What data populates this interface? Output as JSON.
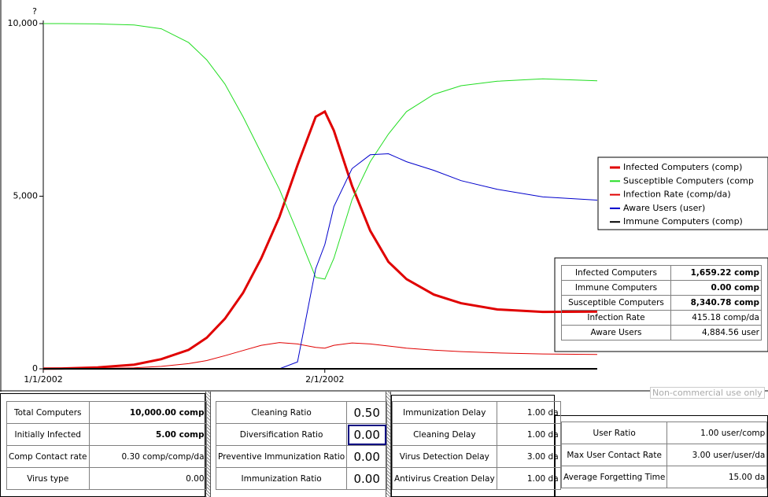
{
  "chart_data": {
    "type": "line",
    "y_unit": "?",
    "x": [
      0,
      2,
      6,
      10,
      13,
      16,
      18,
      20,
      22,
      24,
      26,
      28,
      30,
      31,
      32,
      34,
      36,
      38,
      40,
      43,
      46,
      50,
      55,
      61
    ],
    "xlim": [
      0,
      61
    ],
    "xticks": [
      {
        "value": 0,
        "label": "1/1/2002"
      },
      {
        "value": 31,
        "label": "2/1/2002"
      }
    ],
    "ylim": [
      0,
      10000
    ],
    "yticks": [
      0,
      {
        "value": 5000,
        "label": "5,000"
      },
      {
        "value": 10000,
        "label": "10,000"
      }
    ],
    "legend": "right",
    "series": [
      {
        "name": "Infected Computers (comp)",
        "color": "#e00000",
        "linewidth": 3,
        "values": [
          5,
          10,
          40,
          120,
          280,
          550,
          900,
          1450,
          2200,
          3200,
          4400,
          5900,
          7300,
          7450,
          6900,
          5300,
          4000,
          3100,
          2600,
          2150,
          1900,
          1720,
          1650,
          1659
        ]
      },
      {
        "name": "Susceptible Computers (comp",
        "color": "#22dd22",
        "linewidth": 1,
        "values": [
          10000,
          10000,
          9990,
          9960,
          9850,
          9450,
          8950,
          8250,
          7300,
          6250,
          5200,
          3950,
          2650,
          2600,
          3200,
          4900,
          6000,
          6800,
          7450,
          7950,
          8200,
          8330,
          8400,
          8341
        ]
      },
      {
        "name": "Infection Rate (comp/da)",
        "color": "#e00000",
        "linewidth": 1,
        "values": [
          0,
          2,
          10,
          30,
          70,
          150,
          240,
          380,
          530,
          680,
          760,
          720,
          620,
          600,
          680,
          750,
          720,
          660,
          600,
          540,
          500,
          460,
          430,
          415
        ]
      },
      {
        "name": "Aware Users (user)",
        "color": "#0000cc",
        "linewidth": 1,
        "values": [
          0,
          0,
          0,
          0,
          0,
          0,
          0,
          0,
          0,
          0,
          0,
          200,
          2900,
          3600,
          4700,
          5800,
          6200,
          6230,
          6000,
          5750,
          5450,
          5200,
          4980,
          4885
        ]
      },
      {
        "name": "Immune Computers (comp)",
        "color": "#000000",
        "linewidth": 2,
        "values": [
          0,
          0,
          0,
          0,
          0,
          0,
          0,
          0,
          0,
          0,
          0,
          0,
          0,
          0,
          0,
          0,
          0,
          0,
          0,
          0,
          0,
          0,
          0,
          0
        ]
      }
    ]
  },
  "results": {
    "rows": [
      [
        "Infected Computers",
        "1,659.22 comp"
      ],
      [
        "Immune Computers",
        "0.00 comp"
      ],
      [
        "Susceptible Computers",
        "8,340.78 comp"
      ],
      [
        "Infection Rate",
        "415.18 comp/da"
      ],
      [
        "Aware Users",
        "4,884.56 user"
      ]
    ]
  },
  "inputs": {
    "panel1": [
      [
        "Total Computers",
        "10,000.00 comp"
      ],
      [
        "Initially Infected",
        "5.00 comp"
      ],
      [
        "Comp Contact rate",
        "0.30 comp/comp/da"
      ],
      [
        "Virus type",
        "0.00"
      ]
    ],
    "panel2": [
      [
        "Cleaning Ratio",
        "0.50"
      ],
      [
        "Diversification Ratio",
        "0.00"
      ],
      [
        "Preventive Immunization Ratio",
        "0.00"
      ],
      [
        "Immunization Ratio",
        "0.00"
      ]
    ],
    "panel3": [
      [
        "Immunization Delay",
        "1.00 da"
      ],
      [
        "Cleaning Delay",
        "1.00 da"
      ],
      [
        "Virus Detection Delay",
        "3.00 da"
      ],
      [
        "Antivirus Creation Delay",
        "1.00 da"
      ]
    ],
    "panel4": [
      [
        "User Ratio",
        "1.00 user/comp"
      ],
      [
        "Max User Contact Rate",
        "3.00 user/user/da"
      ],
      [
        "Average Forgetting Time",
        "15.00 da"
      ]
    ]
  },
  "watermark": "Non-commercial use only"
}
